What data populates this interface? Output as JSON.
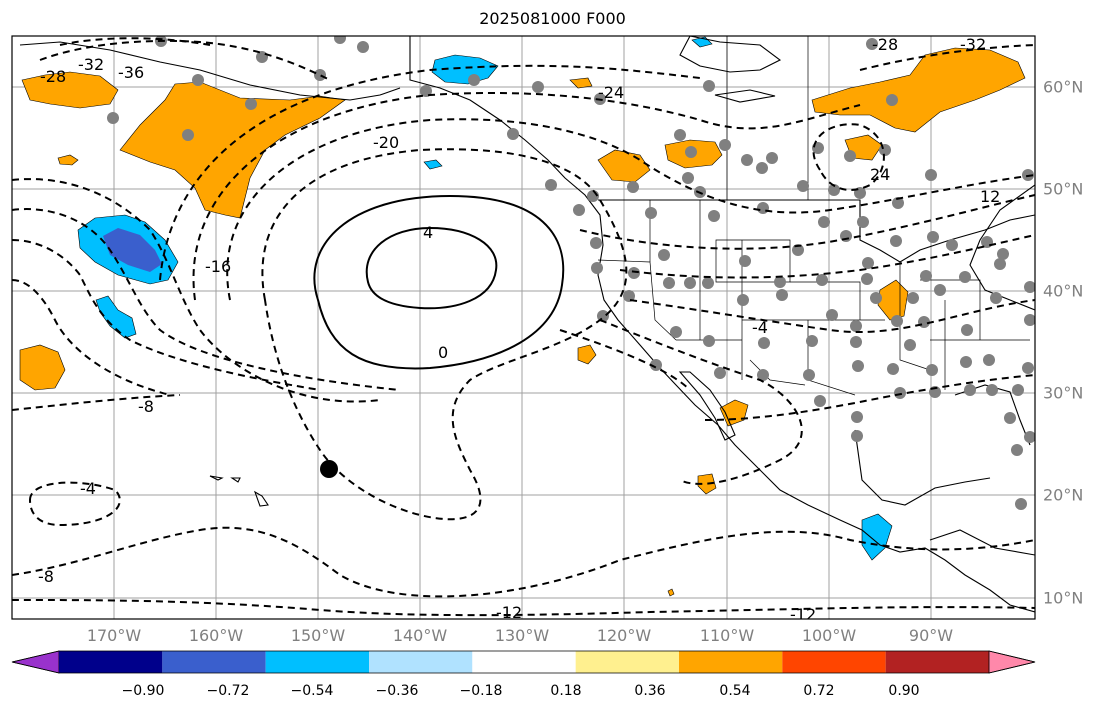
{
  "title": "2025081000 F000",
  "lon_labels": [
    "170°W",
    "160°W",
    "150°W",
    "140°W",
    "130°W",
    "120°W",
    "110°W",
    "100°W",
    "90°W"
  ],
  "lat_labels": [
    "60°N",
    "50°N",
    "40°N",
    "30°N",
    "20°N",
    "10°N"
  ],
  "colorbar": {
    "ticks": [
      "−0.90",
      "−0.72",
      "−0.54",
      "−0.36",
      "−0.18",
      "0.18",
      "0.36",
      "0.54",
      "0.72",
      "0.90"
    ],
    "colors": [
      "#9932cc",
      "#00008b",
      "#3a5fcd",
      "#00bfff",
      "#b0e2ff",
      "#ffffff",
      "#fff08f",
      "#ffa500",
      "#ff4500",
      "#b22222",
      "#ff88aa"
    ]
  },
  "contour_labels": [
    "-36",
    "-32",
    "-28",
    "-24",
    "-20",
    "-16",
    "-12",
    "-8",
    "-4",
    "0",
    "4",
    "-4",
    "-8",
    "-12",
    "-12",
    "12",
    "24",
    "-28",
    "-32"
  ]
}
